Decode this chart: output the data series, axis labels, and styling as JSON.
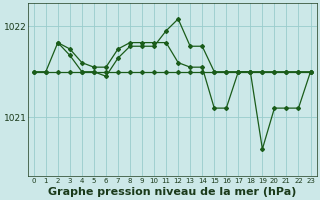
{
  "background_color": "#cce8e8",
  "plot_bg_color": "#cce8e8",
  "grid_color": "#99cccc",
  "line_color": "#1a5c1a",
  "xlabel": "Graphe pression niveau de la mer (hPa)",
  "xlabel_fontsize": 8,
  "yticks": [
    1021,
    1022
  ],
  "xlim": [
    -0.5,
    23.5
  ],
  "ylim": [
    1020.35,
    1022.25
  ],
  "line1_x": [
    0,
    1,
    2,
    3,
    4,
    5,
    6,
    7,
    8,
    9,
    10,
    11,
    12,
    13,
    14,
    15,
    16,
    17,
    18,
    19,
    20,
    21,
    22,
    23
  ],
  "line1_y": [
    1021.5,
    1021.5,
    1021.5,
    1021.5,
    1021.5,
    1021.5,
    1021.5,
    1021.5,
    1021.5,
    1021.5,
    1021.5,
    1021.5,
    1021.5,
    1021.5,
    1021.5,
    1021.5,
    1021.5,
    1021.5,
    1021.5,
    1021.5,
    1021.5,
    1021.5,
    1021.5,
    1021.5
  ],
  "line2_x": [
    2,
    3,
    4,
    5,
    6,
    7,
    8,
    9,
    10,
    11,
    12,
    13,
    14,
    15,
    16,
    17,
    18,
    19,
    20,
    21,
    22,
    23
  ],
  "line2_y": [
    1021.82,
    1021.75,
    1021.6,
    1021.55,
    1021.55,
    1021.75,
    1021.82,
    1021.82,
    1021.82,
    1021.82,
    1021.6,
    1021.55,
    1021.55,
    1021.1,
    1021.1,
    1021.5,
    1021.5,
    1020.65,
    1021.1,
    1021.1,
    1021.1,
    1021.5
  ],
  "line3_x": [
    0,
    1,
    2,
    3,
    4,
    5,
    6,
    7,
    8,
    9,
    10,
    11,
    12,
    13,
    14,
    15,
    16,
    17,
    18,
    19,
    20,
    21,
    22,
    23
  ],
  "line3_y": [
    1021.5,
    1021.5,
    1021.82,
    1021.68,
    1021.5,
    1021.5,
    1021.45,
    1021.65,
    1021.78,
    1021.78,
    1021.78,
    1021.95,
    1022.08,
    1021.78,
    1021.78,
    1021.5,
    1021.5,
    1021.5,
    1021.5,
    1021.5,
    1021.5,
    1021.5,
    1021.5,
    1021.5
  ]
}
